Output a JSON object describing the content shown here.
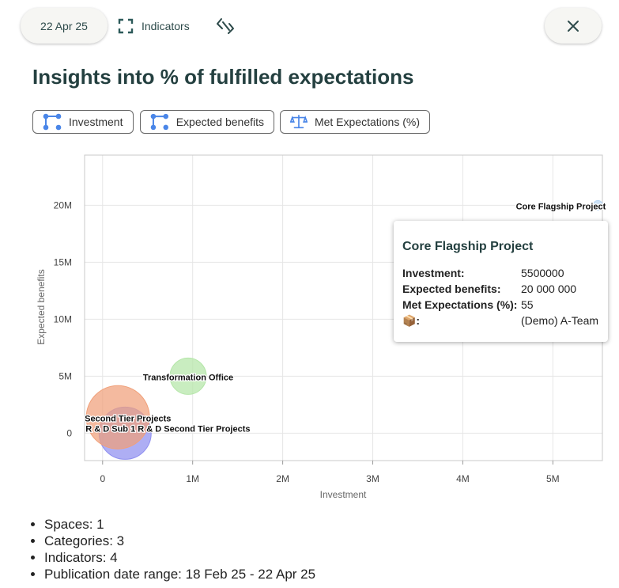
{
  "header": {
    "date": "22 Apr 25",
    "indicators_label": "Indicators"
  },
  "title": "Insights into % of fulfilled expectations",
  "chips": [
    {
      "label": "Investment",
      "icon": "node-graph-icon"
    },
    {
      "label": "Expected benefits",
      "icon": "node-graph-icon"
    },
    {
      "label": "Met Expectations (%)",
      "icon": "balance-scale-icon"
    }
  ],
  "colors": {
    "accent": "#2d4a4a",
    "icon_blue": "#4a86e8"
  },
  "chart_data": {
    "type": "scatter",
    "subtype": "bubble",
    "xlabel": "Investment",
    "ylabel": "Expected benefits",
    "xlim": [
      -200000,
      5550000
    ],
    "ylim": [
      -2400000,
      24400000
    ],
    "xticks": [
      {
        "v": 0,
        "label": "0"
      },
      {
        "v": 1000000,
        "label": "1M"
      },
      {
        "v": 2000000,
        "label": "2M"
      },
      {
        "v": 3000000,
        "label": "3M"
      },
      {
        "v": 4000000,
        "label": "4M"
      },
      {
        "v": 5000000,
        "label": "5M"
      }
    ],
    "yticks": [
      {
        "v": 0,
        "label": "0"
      },
      {
        "v": 5000000,
        "label": "5M"
      },
      {
        "v": 10000000,
        "label": "10M"
      },
      {
        "v": 15000000,
        "label": "15M"
      },
      {
        "v": 20000000,
        "label": "20M"
      }
    ],
    "grid": true,
    "points": [
      {
        "name": "Core Flagship Project",
        "x": 5500000,
        "y": 20000000,
        "size": 55,
        "color": "#b9d6f2"
      },
      {
        "name": "Transformation Office",
        "x": 950000,
        "y": 5000000,
        "size": 55,
        "color": "#b4e6a8"
      },
      {
        "name": "R & D Sub 1 R & D Second Tier Projects",
        "x": 250000,
        "y": 0,
        "size": 90,
        "color": "#8f8ff0"
      },
      {
        "name": "Second Tier Projects",
        "x": 170000,
        "y": 1400000,
        "size": 100,
        "color": "#f0a07a"
      }
    ]
  },
  "tooltip": {
    "title": "Core Flagship Project",
    "rows": [
      {
        "key": "Investment:",
        "value": "5500000"
      },
      {
        "key": "Expected benefits:",
        "value": "20 000 000"
      },
      {
        "key": "Met Expectations (%):",
        "value": "55"
      },
      {
        "key": "📦:",
        "value": "(Demo) A-Team"
      }
    ]
  },
  "summary": [
    "Spaces: 1",
    "Categories: 3",
    "Indicators: 4",
    "Publication date range: 18 Feb 25 - 22 Apr 25"
  ]
}
